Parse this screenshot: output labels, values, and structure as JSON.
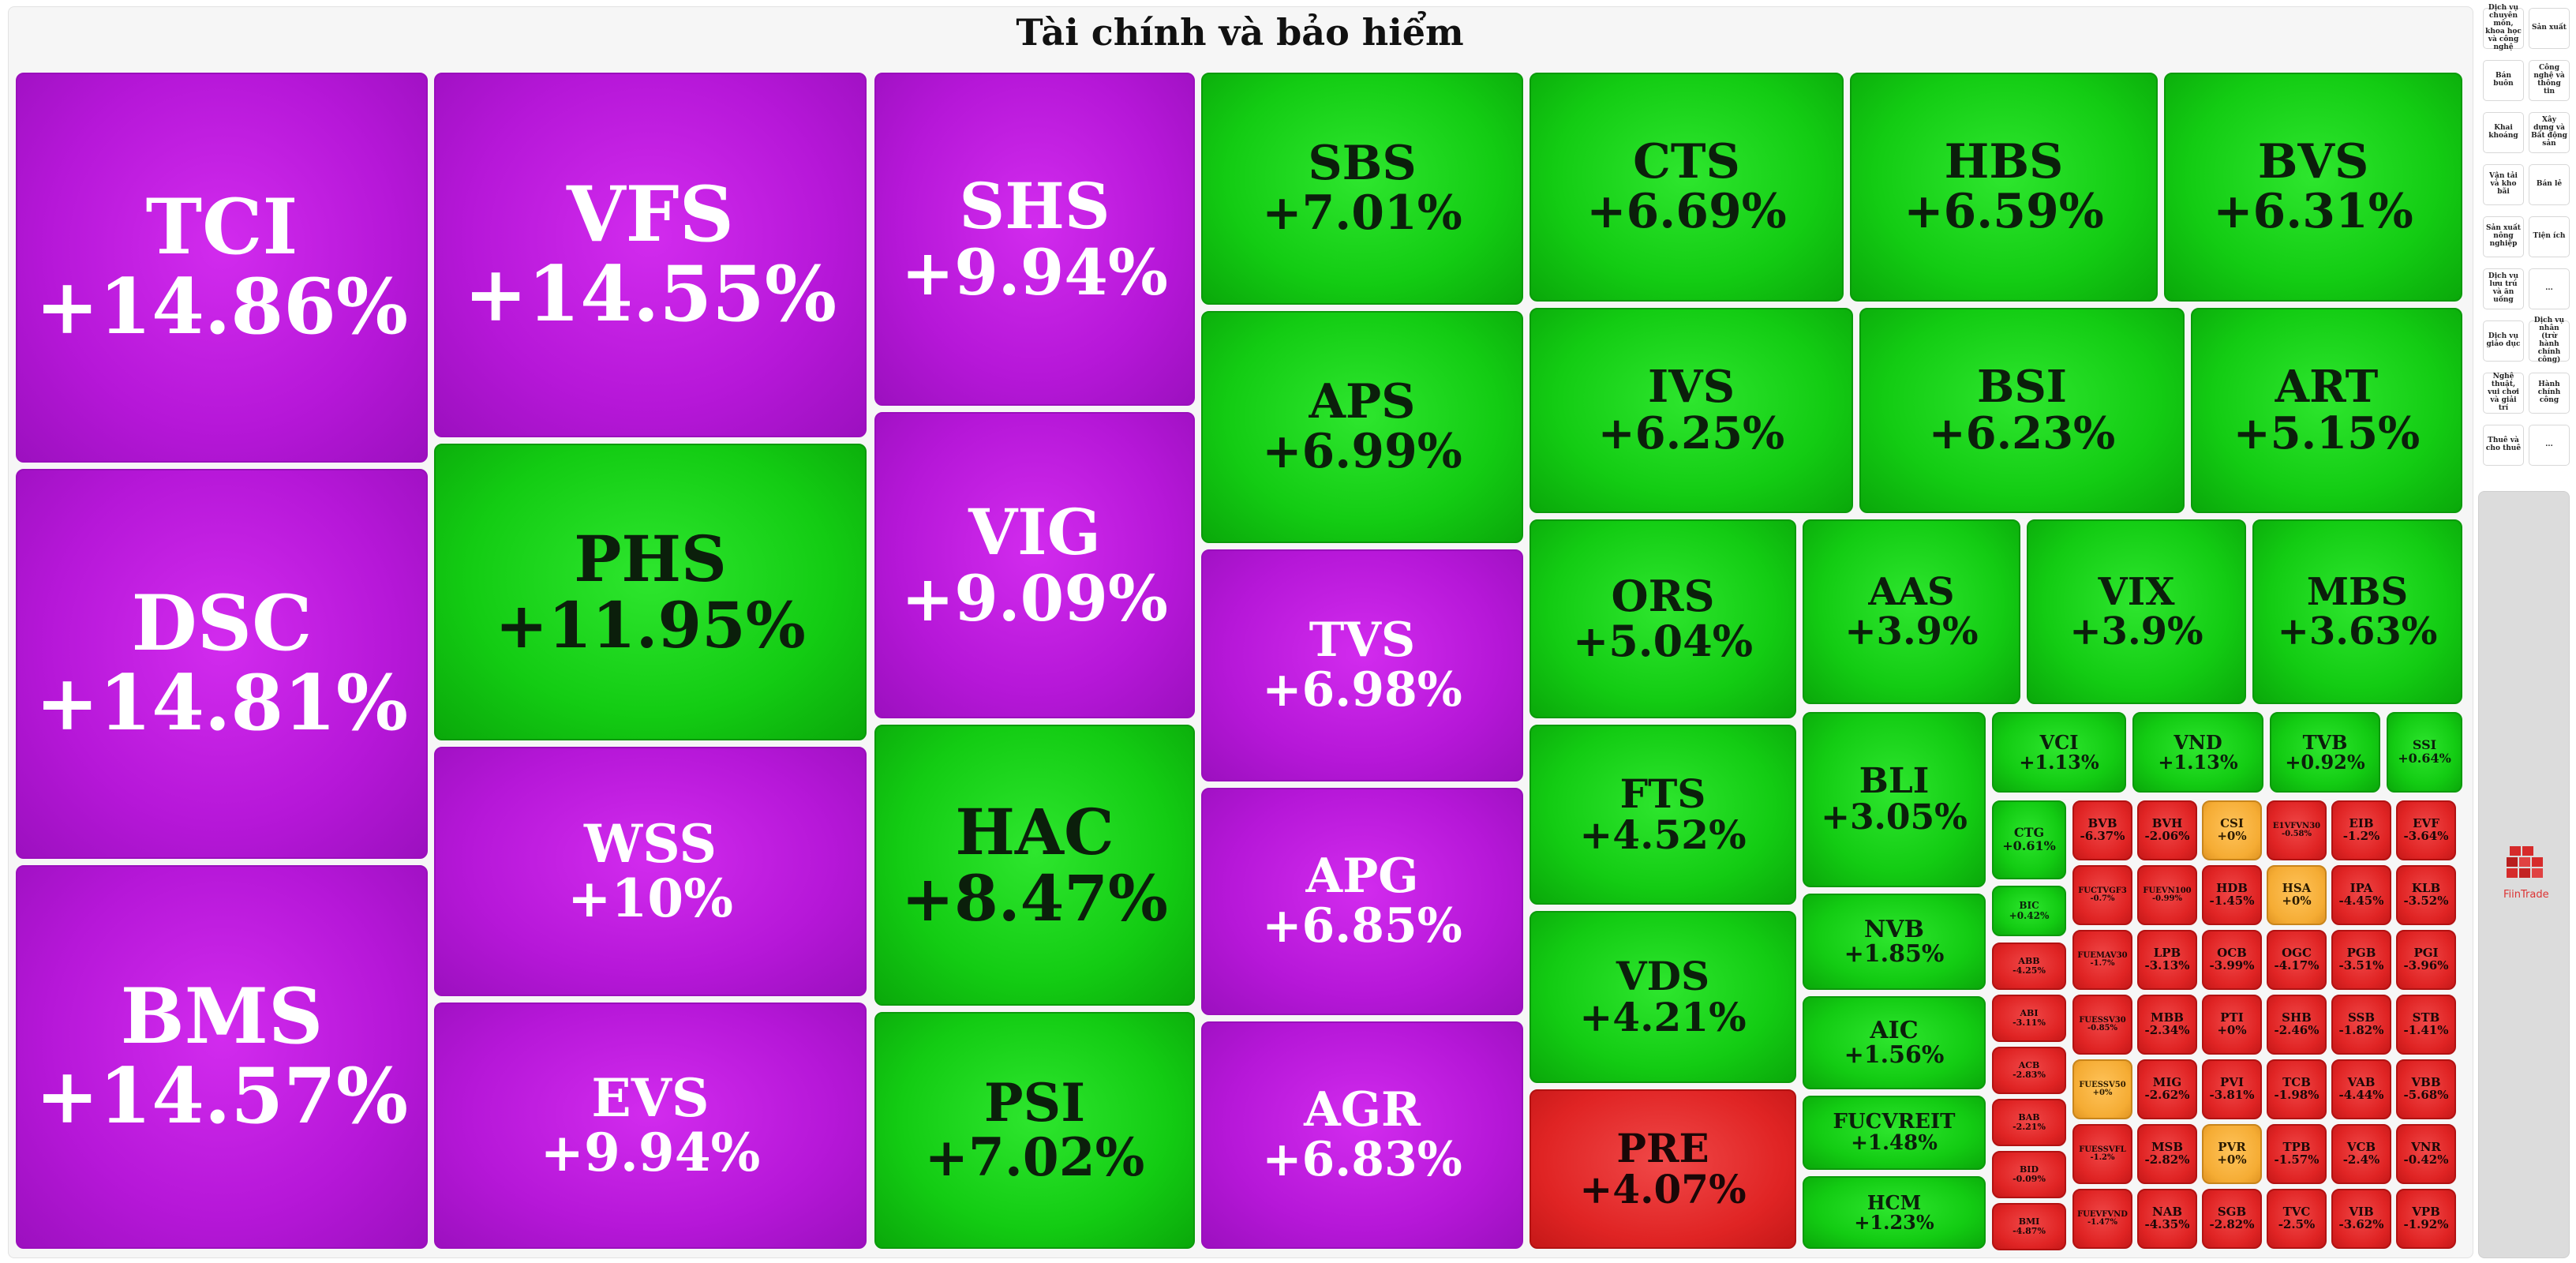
{
  "title": "Tài chính và bảo hiểm",
  "colors": {
    "purple": "#b617d8",
    "green": "#13cc13",
    "red": "#e02424",
    "yellow": "#f5ac34"
  },
  "tiles": [
    {
      "symbol": "TCI",
      "change": "+14.86%",
      "color": "purple"
    },
    {
      "symbol": "DSC",
      "change": "+14.81%",
      "color": "purple"
    },
    {
      "symbol": "BMS",
      "change": "+14.57%",
      "color": "purple"
    },
    {
      "symbol": "VFS",
      "change": "+14.55%",
      "color": "purple"
    },
    {
      "symbol": "PHS",
      "change": "+11.95%",
      "color": "green"
    },
    {
      "symbol": "WSS",
      "change": "+10%",
      "color": "purple"
    },
    {
      "symbol": "EVS",
      "change": "+9.94%",
      "color": "purple"
    },
    {
      "symbol": "SHS",
      "change": "+9.94%",
      "color": "purple"
    },
    {
      "symbol": "VIG",
      "change": "+9.09%",
      "color": "purple"
    },
    {
      "symbol": "HAC",
      "change": "+8.47%",
      "color": "green"
    },
    {
      "symbol": "PSI",
      "change": "+7.02%",
      "color": "green"
    },
    {
      "symbol": "SBS",
      "change": "+7.01%",
      "color": "green"
    },
    {
      "symbol": "APS",
      "change": "+6.99%",
      "color": "green"
    },
    {
      "symbol": "TVS",
      "change": "+6.98%",
      "color": "purple"
    },
    {
      "symbol": "APG",
      "change": "+6.85%",
      "color": "purple"
    },
    {
      "symbol": "AGR",
      "change": "+6.83%",
      "color": "purple"
    },
    {
      "symbol": "CTS",
      "change": "+6.69%",
      "color": "green"
    },
    {
      "symbol": "HBS",
      "change": "+6.59%",
      "color": "green"
    },
    {
      "symbol": "BVS",
      "change": "+6.31%",
      "color": "green"
    },
    {
      "symbol": "IVS",
      "change": "+6.25%",
      "color": "green"
    },
    {
      "symbol": "BSI",
      "change": "+6.23%",
      "color": "green"
    },
    {
      "symbol": "ART",
      "change": "+5.15%",
      "color": "green"
    },
    {
      "symbol": "ORS",
      "change": "+5.04%",
      "color": "green"
    },
    {
      "symbol": "AAS",
      "change": "+3.9%",
      "color": "green"
    },
    {
      "symbol": "VIX",
      "change": "+3.9%",
      "color": "green"
    },
    {
      "symbol": "MBS",
      "change": "+3.63%",
      "color": "green"
    },
    {
      "symbol": "FTS",
      "change": "+4.52%",
      "color": "green"
    },
    {
      "symbol": "VDS",
      "change": "+4.21%",
      "color": "green"
    },
    {
      "symbol": "PRE",
      "change": "+4.07%",
      "color": "red"
    },
    {
      "symbol": "BLI",
      "change": "+3.05%",
      "color": "green"
    },
    {
      "symbol": "NVB",
      "change": "+1.85%",
      "color": "green"
    },
    {
      "symbol": "AIC",
      "change": "+1.56%",
      "color": "green"
    },
    {
      "symbol": "FUCVREIT",
      "change": "+1.48%",
      "color": "green"
    },
    {
      "symbol": "HCM",
      "change": "+1.23%",
      "color": "green"
    },
    {
      "symbol": "VCI",
      "change": "+1.13%",
      "color": "green"
    },
    {
      "symbol": "VND",
      "change": "+1.13%",
      "color": "green"
    },
    {
      "symbol": "TVB",
      "change": "+0.92%",
      "color": "green"
    },
    {
      "symbol": "SSI",
      "change": "+0.64%",
      "color": "green"
    },
    {
      "symbol": "CTG",
      "change": "+0.61%",
      "color": "green"
    },
    {
      "symbol": "BIC",
      "change": "+0.42%",
      "color": "green"
    },
    {
      "symbol": "ABB",
      "change": "-4.25%",
      "color": "red"
    },
    {
      "symbol": "ABI",
      "change": "-3.11%",
      "color": "red"
    },
    {
      "symbol": "ACB",
      "change": "-2.83%",
      "color": "red"
    },
    {
      "symbol": "BAB",
      "change": "-2.21%",
      "color": "red"
    },
    {
      "symbol": "BID",
      "change": "-0.09%",
      "color": "red"
    },
    {
      "symbol": "BMI",
      "change": "-4.87%",
      "color": "red"
    },
    {
      "symbol": "BVB",
      "change": "-6.37%",
      "color": "red"
    },
    {
      "symbol": "BVH",
      "change": "-2.06%",
      "color": "red"
    },
    {
      "symbol": "CSI",
      "change": "+0%",
      "color": "yellow"
    },
    {
      "symbol": "E1VFVN30",
      "change": "-0.58%",
      "color": "red"
    },
    {
      "symbol": "EIB",
      "change": "-1.2%",
      "color": "red"
    },
    {
      "symbol": "EVF",
      "change": "-3.64%",
      "color": "red"
    },
    {
      "symbol": "FUCTVGF3",
      "change": "-0.7%",
      "color": "red"
    },
    {
      "symbol": "FUEVN100",
      "change": "-0.99%",
      "color": "red"
    },
    {
      "symbol": "HDB",
      "change": "-1.45%",
      "color": "red"
    },
    {
      "symbol": "HSA",
      "change": "+0%",
      "color": "yellow"
    },
    {
      "symbol": "IPA",
      "change": "-4.45%",
      "color": "red"
    },
    {
      "symbol": "KLB",
      "change": "-3.52%",
      "color": "red"
    },
    {
      "symbol": "FUEMAV30",
      "change": "-1.7%",
      "color": "red"
    },
    {
      "symbol": "LPB",
      "change": "-3.13%",
      "color": "red"
    },
    {
      "symbol": "OCB",
      "change": "-3.99%",
      "color": "red"
    },
    {
      "symbol": "OGC",
      "change": "-4.17%",
      "color": "red"
    },
    {
      "symbol": "PGB",
      "change": "-3.51%",
      "color": "red"
    },
    {
      "symbol": "PGI",
      "change": "-3.96%",
      "color": "red"
    },
    {
      "symbol": "FUESSV30",
      "change": "-0.85%",
      "color": "red"
    },
    {
      "symbol": "MBB",
      "change": "-2.34%",
      "color": "red"
    },
    {
      "symbol": "PTI",
      "change": "+0%",
      "color": "red"
    },
    {
      "symbol": "SHB",
      "change": "-2.46%",
      "color": "red"
    },
    {
      "symbol": "SSB",
      "change": "-1.82%",
      "color": "red"
    },
    {
      "symbol": "STB",
      "change": "-1.41%",
      "color": "red"
    },
    {
      "symbol": "FUESSV50",
      "change": "+0%",
      "color": "yellow"
    },
    {
      "symbol": "MIG",
      "change": "-2.62%",
      "color": "red"
    },
    {
      "symbol": "PVI",
      "change": "-3.81%",
      "color": "red"
    },
    {
      "symbol": "TCB",
      "change": "-1.98%",
      "color": "red"
    },
    {
      "symbol": "VAB",
      "change": "-4.44%",
      "color": "red"
    },
    {
      "symbol": "VBB",
      "change": "-5.68%",
      "color": "red"
    },
    {
      "symbol": "FUESSVFL",
      "change": "-1.2%",
      "color": "red"
    },
    {
      "symbol": "MSB",
      "change": "-2.82%",
      "color": "red"
    },
    {
      "symbol": "PVR",
      "change": "+0%",
      "color": "yellow"
    },
    {
      "symbol": "TPB",
      "change": "-1.57%",
      "color": "red"
    },
    {
      "symbol": "VCB",
      "change": "-2.4%",
      "color": "red"
    },
    {
      "symbol": "VNR",
      "change": "-0.42%",
      "color": "red"
    },
    {
      "symbol": "FUEVFVND",
      "change": "-1.47%",
      "color": "red"
    },
    {
      "symbol": "NAB",
      "change": "-4.35%",
      "color": "red"
    },
    {
      "symbol": "SGB",
      "change": "-2.82%",
      "color": "red"
    },
    {
      "symbol": "TVC",
      "change": "-2.5%",
      "color": "red"
    },
    {
      "symbol": "VIB",
      "change": "-3.62%",
      "color": "red"
    },
    {
      "symbol": "VPB",
      "change": "-1.92%",
      "color": "red"
    }
  ],
  "sidebar": [
    "Dịch vụ chuyên môn, khoa học và công nghệ",
    "Sản xuất",
    "Bán buôn",
    "Công nghệ và thông tin",
    "Khai khoáng",
    "Xây dựng và Bất động sản",
    "Vận tải và kho bãi",
    "Bán lẻ",
    "Sản xuất nông nghiệp",
    "Tiện ích",
    "Dịch vụ lưu trú và ăn uống",
    "...",
    "Dịch vụ giáo dục",
    "Dịch vụ nhân (trừ hành chính công)",
    "Nghệ thuật, vui chơi và giải trí",
    "Hành chính công",
    "Thuê và cho thuê",
    "..."
  ],
  "logo": {
    "text": "FiinTrade",
    "icon": "fiintrade-logo-icon"
  }
}
